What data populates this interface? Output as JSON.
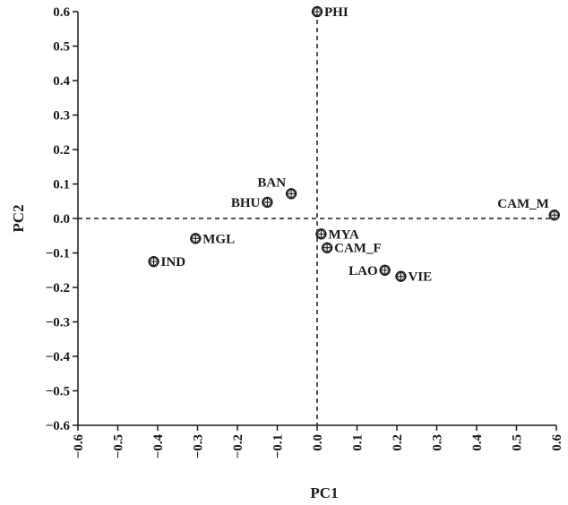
{
  "chart_data": {
    "type": "scatter",
    "xlabel": "PC1",
    "ylabel": "PC2",
    "xlim": [
      -0.6,
      0.6
    ],
    "ylim": [
      -0.6,
      0.6
    ],
    "xticks": [
      -0.6,
      -0.5,
      -0.4,
      -0.3,
      -0.2,
      -0.1,
      0.0,
      0.1,
      0.2,
      0.3,
      0.4,
      0.5,
      0.6
    ],
    "yticks": [
      -0.6,
      -0.5,
      -0.4,
      -0.3,
      -0.2,
      -0.1,
      0.0,
      0.1,
      0.2,
      0.3,
      0.4,
      0.5,
      0.6
    ],
    "xtick_labels": [
      "−0.6",
      "−0.5",
      "−0.4",
      "−0.3",
      "−0.2",
      "−0.1",
      "0.0",
      "0.1",
      "0.2",
      "0.3",
      "0.4",
      "0.5",
      "0.6"
    ],
    "ytick_labels": [
      "−0.6",
      "−0.5",
      "−0.4",
      "−0.3",
      "−0.2",
      "−0.1",
      "0.0",
      "0.1",
      "0.2",
      "0.3",
      "0.4",
      "0.5",
      "0.6"
    ],
    "zero_lines": "dashed",
    "grid": false,
    "marker": "circled-diamond",
    "points": [
      {
        "label": "PHI",
        "x": 0.0,
        "y": 0.6,
        "label_side": "right"
      },
      {
        "label": "BAN",
        "x": -0.065,
        "y": 0.072,
        "label_side": "upper-left"
      },
      {
        "label": "BHU",
        "x": -0.125,
        "y": 0.047,
        "label_side": "left"
      },
      {
        "label": "CAM_M",
        "x": 0.595,
        "y": 0.01,
        "label_side": "upper-left"
      },
      {
        "label": "MYA",
        "x": 0.01,
        "y": -0.045,
        "label_side": "right"
      },
      {
        "label": "MGL",
        "x": -0.305,
        "y": -0.058,
        "label_side": "right"
      },
      {
        "label": "CAM_F",
        "x": 0.025,
        "y": -0.085,
        "label_side": "right"
      },
      {
        "label": "IND",
        "x": -0.41,
        "y": -0.125,
        "label_side": "right"
      },
      {
        "label": "LAO",
        "x": 0.17,
        "y": -0.15,
        "label_side": "left"
      },
      {
        "label": "VIE",
        "x": 0.21,
        "y": -0.168,
        "label_side": "right"
      }
    ]
  }
}
